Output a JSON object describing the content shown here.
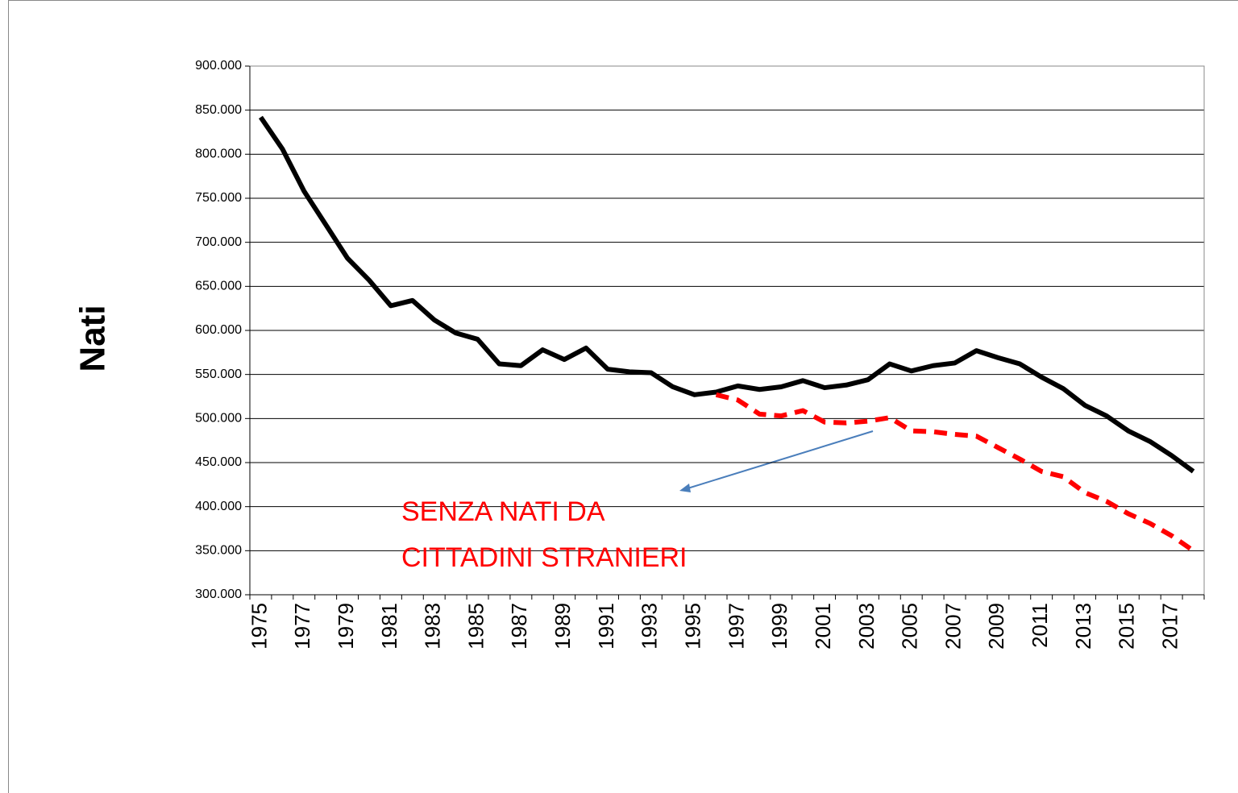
{
  "chart_data": {
    "type": "line",
    "y_label": "Nati",
    "annotation": [
      "SENZA NATI DA",
      "CITTADINI STRANIERI"
    ],
    "annotation_color": "#ff0000",
    "categories": [
      "1975",
      null,
      "1977",
      null,
      "1979",
      null,
      "1981",
      null,
      "1983",
      null,
      "1985",
      null,
      "1987",
      null,
      "1989",
      null,
      "1991",
      null,
      "1993",
      null,
      "1995",
      null,
      "1997",
      null,
      "1999",
      null,
      "2001",
      null,
      "2003",
      null,
      "2005",
      null,
      "2007",
      null,
      "2009",
      null,
      "2011",
      null,
      "2013",
      null,
      "2015",
      null,
      "2017",
      null
    ],
    "series": [
      {
        "color": "#000000",
        "dashed": false,
        "values": [
          842000,
          806000,
          758000,
          720000,
          682000,
          657000,
          628000,
          634000,
          612000,
          597000,
          590000,
          562000,
          560000,
          578000,
          567000,
          580000,
          556000,
          553000,
          552000,
          536000,
          527000,
          530000,
          537000,
          533000,
          536000,
          543000,
          535000,
          538000,
          544000,
          562000,
          554000,
          560000,
          563000,
          577000,
          569000,
          562000,
          547000,
          534000,
          515000,
          503000,
          486000,
          474000,
          458000,
          440000
        ]
      },
      {
        "color": "#ff0000",
        "dashed": true,
        "values": [
          null,
          null,
          null,
          null,
          null,
          null,
          null,
          null,
          null,
          null,
          null,
          null,
          null,
          null,
          null,
          null,
          null,
          null,
          null,
          null,
          null,
          527000,
          521000,
          505000,
          503000,
          509000,
          496000,
          495000,
          497000,
          501000,
          486000,
          485000,
          482000,
          480000,
          467000,
          454000,
          440000,
          434000,
          416000,
          406000,
          392000,
          381000,
          367000,
          350000
        ]
      }
    ],
    "ylim": [
      300000,
      900000
    ],
    "yticks": [
      {
        "value": 300000,
        "label": "300.000"
      },
      {
        "value": 350000,
        "label": "350.000"
      },
      {
        "value": 400000,
        "label": "400.000"
      },
      {
        "value": 450000,
        "label": "450.000"
      },
      {
        "value": 500000,
        "label": "500.000"
      },
      {
        "value": 550000,
        "label": "550.000"
      },
      {
        "value": 600000,
        "label": "600.000"
      },
      {
        "value": 650000,
        "label": "650.000"
      },
      {
        "value": 700000,
        "label": "700.000"
      },
      {
        "value": 750000,
        "label": "750.000"
      },
      {
        "value": 800000,
        "label": "800.000"
      },
      {
        "value": 850000,
        "label": "850.000"
      },
      {
        "value": 900000,
        "label": "900.000"
      }
    ],
    "grid": true
  }
}
